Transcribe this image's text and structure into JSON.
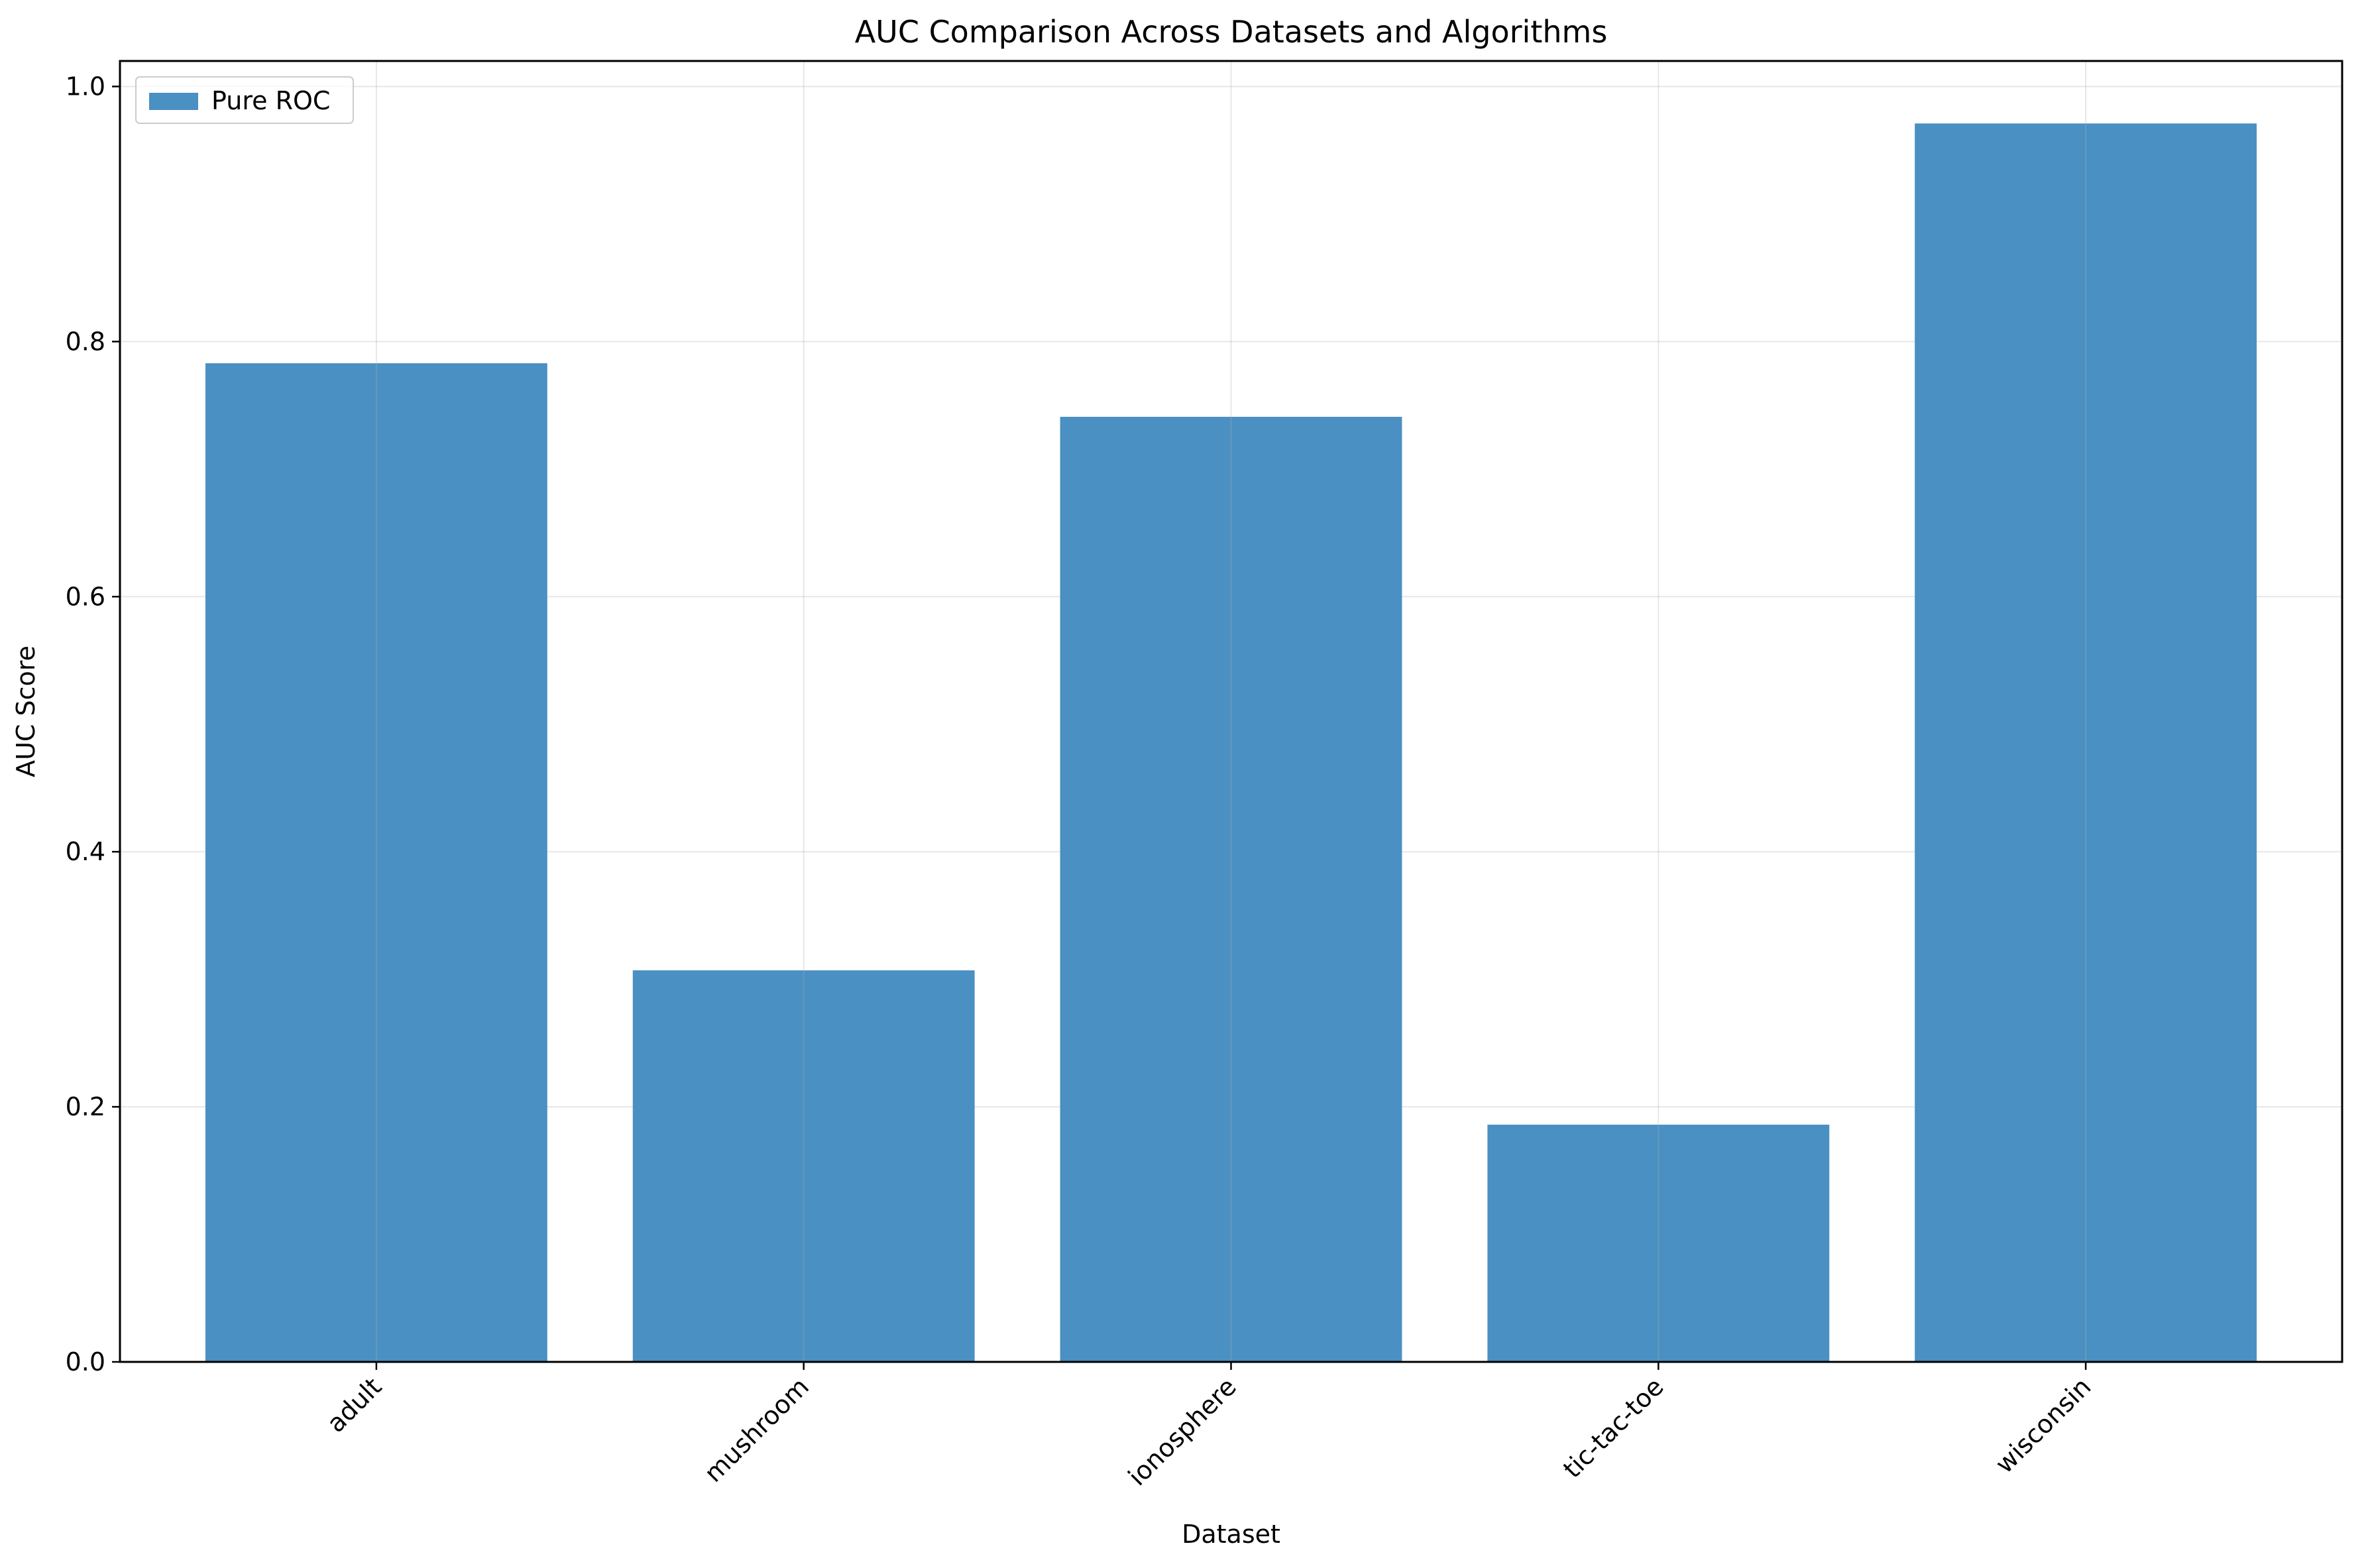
{
  "chart_data": {
    "type": "bar",
    "title": "AUC Comparison Across Datasets and Algorithms",
    "xlabel": "Dataset",
    "ylabel": "AUC Score",
    "categories": [
      "adult",
      "mushroom",
      "ionosphere",
      "tic-tac-toe",
      "wisconsin"
    ],
    "series": [
      {
        "name": "Pure ROC",
        "values": [
          0.783,
          0.307,
          0.741,
          0.186,
          0.971
        ],
        "color": "#4a90c2"
      }
    ],
    "ylim": [
      0,
      1.02
    ],
    "yticks": [
      0.0,
      0.2,
      0.4,
      0.6,
      0.8,
      1.0
    ],
    "ytick_labels": [
      "0.0",
      "0.2",
      "0.4",
      "0.6",
      "0.8",
      "1.0"
    ],
    "xtick_rotation": 45,
    "grid": true,
    "legend_position": "top-left"
  }
}
